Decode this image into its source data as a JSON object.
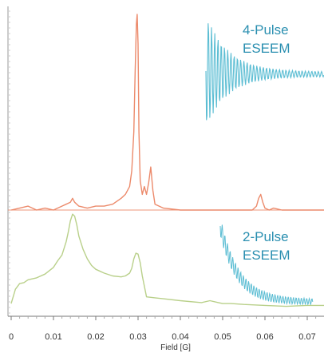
{
  "chart_data": {
    "type": "line",
    "xlabel": "Field [G]",
    "ylabel": "",
    "title": "",
    "xlim": [
      0,
      0.074
    ],
    "x_ticks": [
      "0",
      "0.01",
      "0.02",
      "0.03",
      "0.04",
      "0.05",
      "0.06",
      "0.07"
    ],
    "grid": false,
    "legend": "none",
    "annotations": [
      {
        "lines": [
          "4-Pulse",
          "ESEEM"
        ]
      },
      {
        "lines": [
          "2-Pulse",
          "ESEEM"
        ]
      }
    ],
    "colors": {
      "orange": "#ec8a6b",
      "green": "#b9d08a",
      "cyan": "#5bbdd3",
      "annotation": "#2a8fb0",
      "axis": "#777777"
    },
    "series": [
      {
        "color": "orange",
        "x": [
          0.0,
          0.002,
          0.004,
          0.006,
          0.008,
          0.01,
          0.012,
          0.013,
          0.014,
          0.0145,
          0.015,
          0.016,
          0.018,
          0.02,
          0.022,
          0.024,
          0.026,
          0.027,
          0.028,
          0.0285,
          0.029,
          0.0293,
          0.0296,
          0.0298,
          0.03,
          0.0302,
          0.0305,
          0.031,
          0.0315,
          0.032,
          0.0325,
          0.033,
          0.0335,
          0.034,
          0.036,
          0.04,
          0.045,
          0.05,
          0.055,
          0.057,
          0.058,
          0.0585,
          0.059,
          0.0595,
          0.06,
          0.061,
          0.062,
          0.064,
          0.068,
          0.074
        ],
        "y": [
          0.0,
          0.01,
          0.02,
          0.0,
          0.01,
          0.0,
          0.02,
          0.03,
          0.04,
          0.06,
          0.04,
          0.02,
          0.01,
          0.02,
          0.02,
          0.03,
          0.06,
          0.08,
          0.12,
          0.2,
          0.4,
          0.7,
          0.95,
          1.0,
          0.85,
          0.4,
          0.15,
          0.08,
          0.12,
          0.08,
          0.14,
          0.22,
          0.1,
          0.03,
          0.01,
          0.0,
          0.0,
          0.0,
          0.0,
          0.0,
          0.02,
          0.06,
          0.08,
          0.04,
          0.01,
          0.0,
          0.01,
          0.0,
          0.0,
          0.0
        ]
      },
      {
        "color": "green",
        "x": [
          0.0,
          0.001,
          0.002,
          0.003,
          0.004,
          0.006,
          0.008,
          0.01,
          0.011,
          0.012,
          0.013,
          0.0135,
          0.014,
          0.0145,
          0.015,
          0.0155,
          0.016,
          0.017,
          0.018,
          0.019,
          0.02,
          0.022,
          0.024,
          0.026,
          0.027,
          0.028,
          0.0285,
          0.029,
          0.0295,
          0.03,
          0.0305,
          0.031,
          0.032,
          0.034,
          0.036,
          0.04,
          0.045,
          0.047,
          0.049,
          0.05,
          0.052,
          0.055,
          0.06,
          0.065,
          0.07,
          0.074
        ],
        "y": [
          0.05,
          0.2,
          0.26,
          0.27,
          0.3,
          0.32,
          0.36,
          0.43,
          0.5,
          0.56,
          0.7,
          0.8,
          0.92,
          0.99,
          0.97,
          0.88,
          0.76,
          0.62,
          0.52,
          0.45,
          0.41,
          0.37,
          0.34,
          0.33,
          0.34,
          0.37,
          0.42,
          0.52,
          0.58,
          0.57,
          0.48,
          0.34,
          0.12,
          0.11,
          0.1,
          0.08,
          0.06,
          0.08,
          0.06,
          0.05,
          0.05,
          0.04,
          0.03,
          0.02,
          0.03,
          0.03
        ]
      }
    ]
  }
}
